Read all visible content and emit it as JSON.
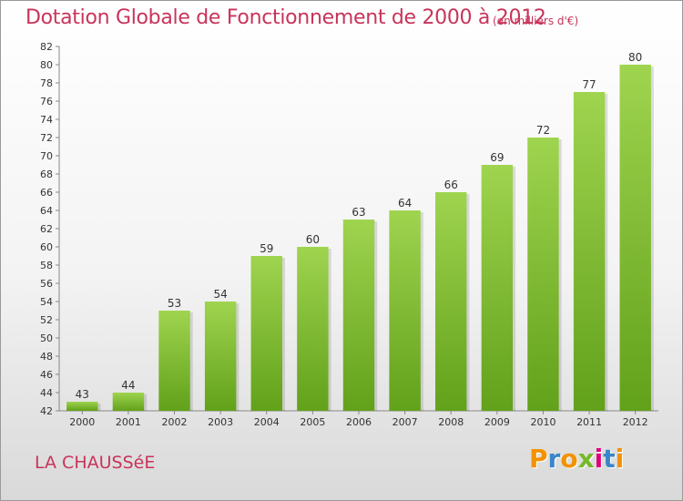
{
  "title": "Dotation Globale de Fonctionnement de 2000 à 2012",
  "subtitle": "(en milliers d'€)",
  "commune": "LA CHAUSSéE",
  "logo": {
    "letters": [
      {
        "char": "P",
        "color": "#f39200"
      },
      {
        "char": "r",
        "color": "#3a86c8"
      },
      {
        "char": "o",
        "color": "#f39200"
      },
      {
        "char": "x",
        "color": "#76b82a"
      },
      {
        "char": "i",
        "color": "#e2007a"
      },
      {
        "char": "t",
        "color": "#3a86c8"
      },
      {
        "char": "i",
        "color": "#f39200"
      }
    ]
  },
  "colors": {
    "bar_top": "#9fd44f",
    "bar_bottom": "#62a11a",
    "title": "#c8345a"
  },
  "chart_data": {
    "type": "bar",
    "title": "Dotation Globale de Fonctionnement de 2000 à 2012",
    "subtitle": "(en milliers d'€)",
    "categories": [
      "2000",
      "2001",
      "2002",
      "2003",
      "2004",
      "2005",
      "2006",
      "2007",
      "2008",
      "2009",
      "2010",
      "2011",
      "2012"
    ],
    "values": [
      43,
      44,
      53,
      54,
      59,
      60,
      63,
      64,
      66,
      69,
      72,
      77,
      80
    ],
    "ylim": [
      42,
      82
    ],
    "yticks": [
      42,
      44,
      46,
      48,
      50,
      52,
      54,
      56,
      58,
      60,
      62,
      64,
      66,
      68,
      70,
      72,
      74,
      76,
      78,
      80,
      82
    ],
    "xlabel": "",
    "ylabel": "",
    "grid": false,
    "legend": "none"
  }
}
